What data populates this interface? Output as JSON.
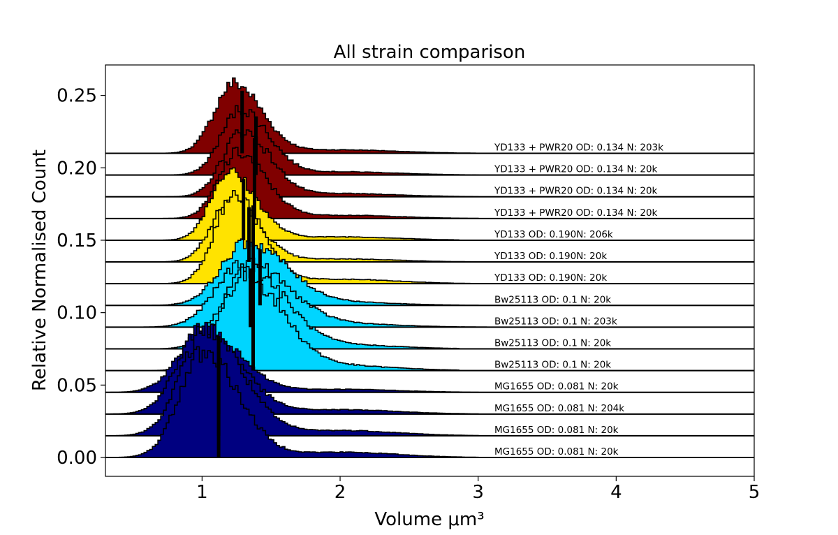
{
  "chart_data": {
    "type": "area",
    "title": "All strain comparison",
    "xlabel": "Volume μm³",
    "ylabel": "Relative Normalised Count",
    "xlim": [
      0.3,
      5.0
    ],
    "ylim": [
      -0.013,
      0.271
    ],
    "x_ticks": [
      "1",
      "2",
      "3",
      "4",
      "5"
    ],
    "y_ticks": [
      "0.00",
      "0.05",
      "0.10",
      "0.15",
      "0.20",
      "0.25"
    ],
    "grid": false,
    "legend": "none",
    "colors": {
      "MG1655": "#000080",
      "Bw25113": "#00d5ff",
      "YD133": "#ffe300",
      "YD133 + PWR20": "#800000"
    },
    "series": [
      {
        "label": "MG1655 OD: 0.081 N: 20k",
        "strain": "MG1655",
        "offset": 0.0,
        "peak_x": 1.0,
        "peak_h": 0.073,
        "sigma_left": 0.17,
        "sigma_right": 0.25,
        "x_start": 0.33,
        "x_end": 3.0,
        "mean": 1.12
      },
      {
        "label": "MG1655 OD: 0.081 N: 20k",
        "strain": "MG1655",
        "offset": 0.015,
        "peak_x": 1.02,
        "peak_h": 0.073,
        "sigma_left": 0.18,
        "sigma_right": 0.26,
        "x_start": 0.33,
        "x_end": 3.0,
        "mean": 1.12
      },
      {
        "label": "MG1655 OD: 0.081 N: 204k",
        "strain": "MG1655",
        "offset": 0.03,
        "peak_x": 1.0,
        "peak_h": 0.06,
        "sigma_left": 0.18,
        "sigma_right": 0.26,
        "x_start": 0.33,
        "x_end": 3.0,
        "mean": 1.12
      },
      {
        "label": "MG1655 OD: 0.081 N: 20k",
        "strain": "MG1655",
        "offset": 0.045,
        "peak_x": 1.0,
        "peak_h": 0.042,
        "sigma_left": 0.18,
        "sigma_right": 0.26,
        "x_start": 0.33,
        "x_end": 3.0,
        "mean": 1.12
      },
      {
        "label": "Bw25113 OD: 0.1 N: 20k",
        "strain": "Bw25113",
        "offset": 0.06,
        "peak_x": 1.3,
        "peak_h": 0.065,
        "sigma_left": 0.18,
        "sigma_right": 0.27,
        "x_start": 0.6,
        "x_end": 2.85,
        "mean": 1.37
      },
      {
        "label": "Bw25113 OD: 0.1 N: 20k",
        "strain": "Bw25113",
        "offset": 0.075,
        "peak_x": 1.32,
        "peak_h": 0.055,
        "sigma_left": 0.18,
        "sigma_right": 0.27,
        "x_start": 0.55,
        "x_end": 2.85,
        "mean": 1.37
      },
      {
        "label": "Bw25113 OD: 0.1 N: 203k",
        "strain": "Bw25113",
        "offset": 0.09,
        "peak_x": 1.3,
        "peak_h": 0.045,
        "sigma_left": 0.2,
        "sigma_right": 0.3,
        "x_start": 0.4,
        "x_end": 3.05,
        "mean": 1.35
      },
      {
        "label": "Bw25113 OD: 0.1 N: 20k",
        "strain": "Bw25113",
        "offset": 0.105,
        "peak_x": 1.32,
        "peak_h": 0.043,
        "sigma_left": 0.19,
        "sigma_right": 0.28,
        "x_start": 0.5,
        "x_end": 3.0,
        "mean": 1.42
      },
      {
        "label": "YD133 OD: 0.190N: 20k",
        "strain": "YD133",
        "offset": 0.12,
        "peak_x": 1.22,
        "peak_h": 0.06,
        "sigma_left": 0.14,
        "sigma_right": 0.2,
        "x_start": 0.33,
        "x_end": 4.85,
        "mean": 1.37
      },
      {
        "label": "YD133 OD: 0.190N: 20k",
        "strain": "YD133",
        "offset": 0.135,
        "peak_x": 1.2,
        "peak_h": 0.042,
        "sigma_left": 0.14,
        "sigma_right": 0.2,
        "x_start": 0.33,
        "x_end": 3.0,
        "mean": 1.34
      },
      {
        "label": "YD133 OD: 0.190N: 206k",
        "strain": "YD133",
        "offset": 0.15,
        "peak_x": 1.18,
        "peak_h": 0.047,
        "sigma_left": 0.13,
        "sigma_right": 0.2,
        "x_start": 0.6,
        "x_end": 2.85,
        "mean": 1.3
      },
      {
        "label": "YD133 + PWR20 OD: 0.134 N: 20k",
        "strain": "YD133 + PWR20",
        "offset": 0.165,
        "peak_x": 1.25,
        "peak_h": 0.045,
        "sigma_left": 0.14,
        "sigma_right": 0.2,
        "x_start": 0.33,
        "x_end": 3.0,
        "mean": 1.38
      },
      {
        "label": "YD133 + PWR20 OD: 0.134 N: 20k",
        "strain": "YD133 + PWR20",
        "offset": 0.18,
        "peak_x": 1.28,
        "peak_h": 0.045,
        "sigma_left": 0.14,
        "sigma_right": 0.2,
        "x_start": 0.33,
        "x_end": 3.0,
        "mean": 1.38
      },
      {
        "label": "YD133 + PWR20 OD: 0.134 N: 20k",
        "strain": "YD133 + PWR20",
        "offset": 0.195,
        "peak_x": 1.27,
        "peak_h": 0.045,
        "sigma_left": 0.14,
        "sigma_right": 0.2,
        "x_start": 0.33,
        "x_end": 3.0,
        "mean": 1.39
      },
      {
        "label": "YD133 + PWR20 OD: 0.134 N: 203k",
        "strain": "YD133 + PWR20",
        "offset": 0.21,
        "peak_x": 1.22,
        "peak_h": 0.048,
        "sigma_left": 0.14,
        "sigma_right": 0.2,
        "x_start": 0.33,
        "x_end": 3.0,
        "mean": 1.29
      }
    ]
  }
}
